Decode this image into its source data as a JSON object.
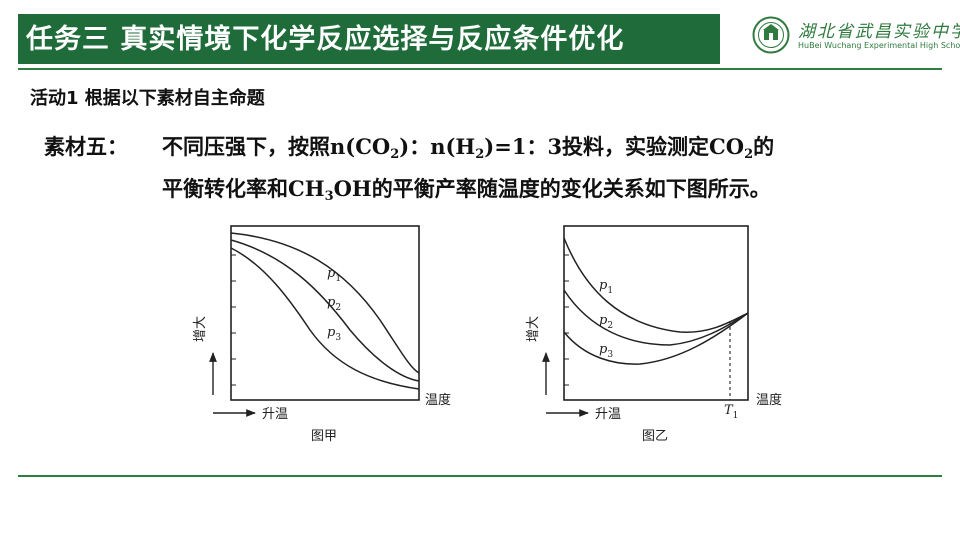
{
  "header": {
    "title": "任务三  真实情境下化学反应选择与反应条件优化",
    "logo_name": "湖北省武昌实验中学",
    "logo_sub": "HuBei Wuchang Experimental High School",
    "brand_color": "#1f6b3a"
  },
  "activity": {
    "label": "活动1  根据以下素材自主命题"
  },
  "material": {
    "label": "素材五：",
    "line1": {
      "t1": "不同压强下，按照n(CO",
      "s1": "2",
      "t2": ")：n(H",
      "s2": "2",
      "t3": ")=1：3投料，实验测定CO",
      "s3": "2",
      "t4": "的"
    },
    "line2": {
      "t1": "平衡转化率和CH",
      "s1": "3",
      "t2": "OH的平衡产率随温度的变化关系如下图所示。"
    }
  },
  "figures": {
    "fig_a": {
      "caption": "图甲",
      "y_label": "增大",
      "x_label": "升温",
      "x_axis_end": "温度",
      "curves": [
        {
          "p": "p",
          "sub": "1"
        },
        {
          "p": "p",
          "sub": "2"
        },
        {
          "p": "p",
          "sub": "3"
        }
      ]
    },
    "fig_b": {
      "caption": "图乙",
      "y_label": "增大",
      "x_label": "升温",
      "x_axis_end": "温度",
      "marker": {
        "t": "T",
        "sub": "1"
      },
      "curves": [
        {
          "p": "p",
          "sub": "1"
        },
        {
          "p": "p",
          "sub": "2"
        },
        {
          "p": "p",
          "sub": "3"
        }
      ]
    }
  }
}
